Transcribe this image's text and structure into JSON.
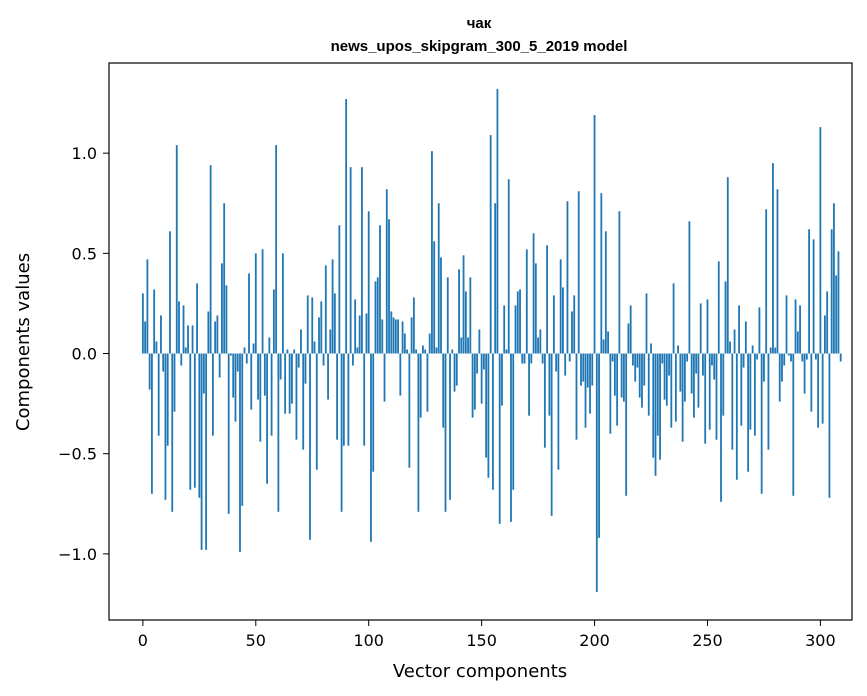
{
  "chart_data": {
    "type": "bar",
    "title_line1": "чак",
    "title_line2": "news_upos_skipgram_300_5_2019 model",
    "xlabel": "Vector components",
    "ylabel": "Components values",
    "xlim": [
      -15,
      314
    ],
    "ylim": [
      -1.33,
      1.45
    ],
    "xticks": [
      0,
      50,
      100,
      150,
      200,
      250,
      300
    ],
    "xtick_labels": [
      "0",
      "50",
      "100",
      "150",
      "200",
      "250",
      "300"
    ],
    "yticks": [
      -1.0,
      -0.5,
      0.0,
      0.5,
      1.0
    ],
    "ytick_labels": [
      "−1.0",
      "−0.5",
      "0.0",
      "0.5",
      "1.0"
    ],
    "bar_color": "#1f77b4",
    "values": [
      0.3,
      0.16,
      0.47,
      -0.18,
      -0.7,
      0.32,
      0.06,
      -0.41,
      0.19,
      -0.09,
      -0.73,
      -0.46,
      0.61,
      -0.79,
      -0.29,
      1.04,
      0.26,
      -0.06,
      0.24,
      0.03,
      0.14,
      -0.68,
      0.14,
      -0.67,
      0.35,
      -0.72,
      -0.98,
      -0.2,
      -0.98,
      0.21,
      0.94,
      -0.41,
      0.16,
      0.19,
      -0.12,
      0.45,
      0.75,
      0.34,
      -0.8,
      -0.01,
      -0.22,
      -0.34,
      -0.09,
      -0.99,
      -0.76,
      0.03,
      -0.05,
      0.4,
      -0.28,
      0.05,
      0.5,
      -0.23,
      -0.44,
      0.52,
      -0.21,
      -0.65,
      0.08,
      -0.41,
      0.32,
      1.04,
      -0.79,
      -0.13,
      0.5,
      -0.3,
      0.02,
      -0.3,
      -0.25,
      0.02,
      -0.43,
      -0.07,
      0.12,
      -0.48,
      -0.15,
      0.29,
      -0.93,
      0.28,
      0.06,
      -0.58,
      0.18,
      0.26,
      -0.06,
      0.44,
      -0.23,
      0.12,
      0.47,
      0.3,
      -0.43,
      0.64,
      -0.79,
      -0.46,
      1.27,
      -0.46,
      0.93,
      -0.06,
      0.27,
      0.03,
      0.19,
      0.93,
      -0.46,
      0.2,
      0.71,
      -0.94,
      -0.59,
      0.36,
      0.38,
      0.64,
      0.17,
      -0.24,
      0.82,
      0.67,
      0.21,
      0.18,
      0.17,
      0.17,
      -0.21,
      0.16,
      0.1,
      0.02,
      -0.57,
      0.18,
      0.28,
      0.02,
      -0.79,
      -0.32,
      0.04,
      0.02,
      -0.29,
      0.1,
      1.01,
      0.56,
      0.03,
      0.75,
      0.48,
      -0.37,
      -0.79,
      0.38,
      -0.73,
      0.02,
      -0.19,
      -0.16,
      0.42,
      0.08,
      0.49,
      0.31,
      0.08,
      0.38,
      -0.32,
      -0.28,
      -0.1,
      0.12,
      -0.25,
      -0.08,
      -0.52,
      -0.62,
      1.09,
      -0.68,
      0.75,
      1.32,
      -0.85,
      -0.26,
      0.24,
      0.02,
      0.87,
      -0.84,
      -0.68,
      0.24,
      0.31,
      0.32,
      -0.05,
      -0.05,
      0.52,
      -0.31,
      -0.05,
      0.6,
      0.45,
      0.08,
      0.12,
      -0.05,
      -0.47,
      0.54,
      -0.31,
      -0.81,
      0.29,
      -0.09,
      -0.58,
      0.47,
      0.33,
      -0.11,
      0.76,
      -0.04,
      0.21,
      0.29,
      -0.43,
      0.81,
      -0.16,
      -0.14,
      -0.37,
      -0.17,
      -0.3,
      -0.16,
      1.19,
      -1.19,
      -0.92,
      0.8,
      0.07,
      0.61,
      0.11,
      -0.4,
      -0.04,
      -0.21,
      -0.36,
      0.71,
      -0.22,
      -0.24,
      -0.71,
      0.15,
      0.24,
      -0.06,
      -0.14,
      -0.07,
      -0.22,
      -0.27,
      -0.16,
      0.3,
      -0.31,
      0.05,
      -0.52,
      -0.61,
      -0.41,
      -0.53,
      -0.05,
      -0.23,
      -0.26,
      -0.11,
      -0.37,
      0.35,
      -0.34,
      0.04,
      -0.19,
      -0.44,
      -0.24,
      -0.04,
      0.66,
      -0.2,
      -0.32,
      -0.1,
      -0.27,
      0.25,
      -0.11,
      -0.45,
      0.27,
      -0.38,
      -0.06,
      -0.13,
      -0.43,
      0.46,
      -0.74,
      -0.31,
      0.36,
      0.88,
      0.06,
      -0.48,
      0.12,
      -0.63,
      0.24,
      -0.36,
      -0.07,
      0.16,
      -0.59,
      -0.38,
      0.04,
      -0.41,
      -0.03,
      0.23,
      -0.7,
      -0.14,
      0.72,
      -0.48,
      0.03,
      0.95,
      0.03,
      0.82,
      -0.24,
      -0.14,
      -0.06,
      0.29,
      -0.01,
      -0.04,
      -0.71,
      0.27,
      0.11,
      0.24,
      -0.04,
      -0.2,
      -0.03,
      0.62,
      -0.29,
      0.57,
      -0.03,
      -0.37,
      1.13,
      -0.35,
      0.19,
      0.31,
      -0.72,
      0.62,
      0.75,
      0.39,
      0.51,
      -0.04
    ]
  }
}
